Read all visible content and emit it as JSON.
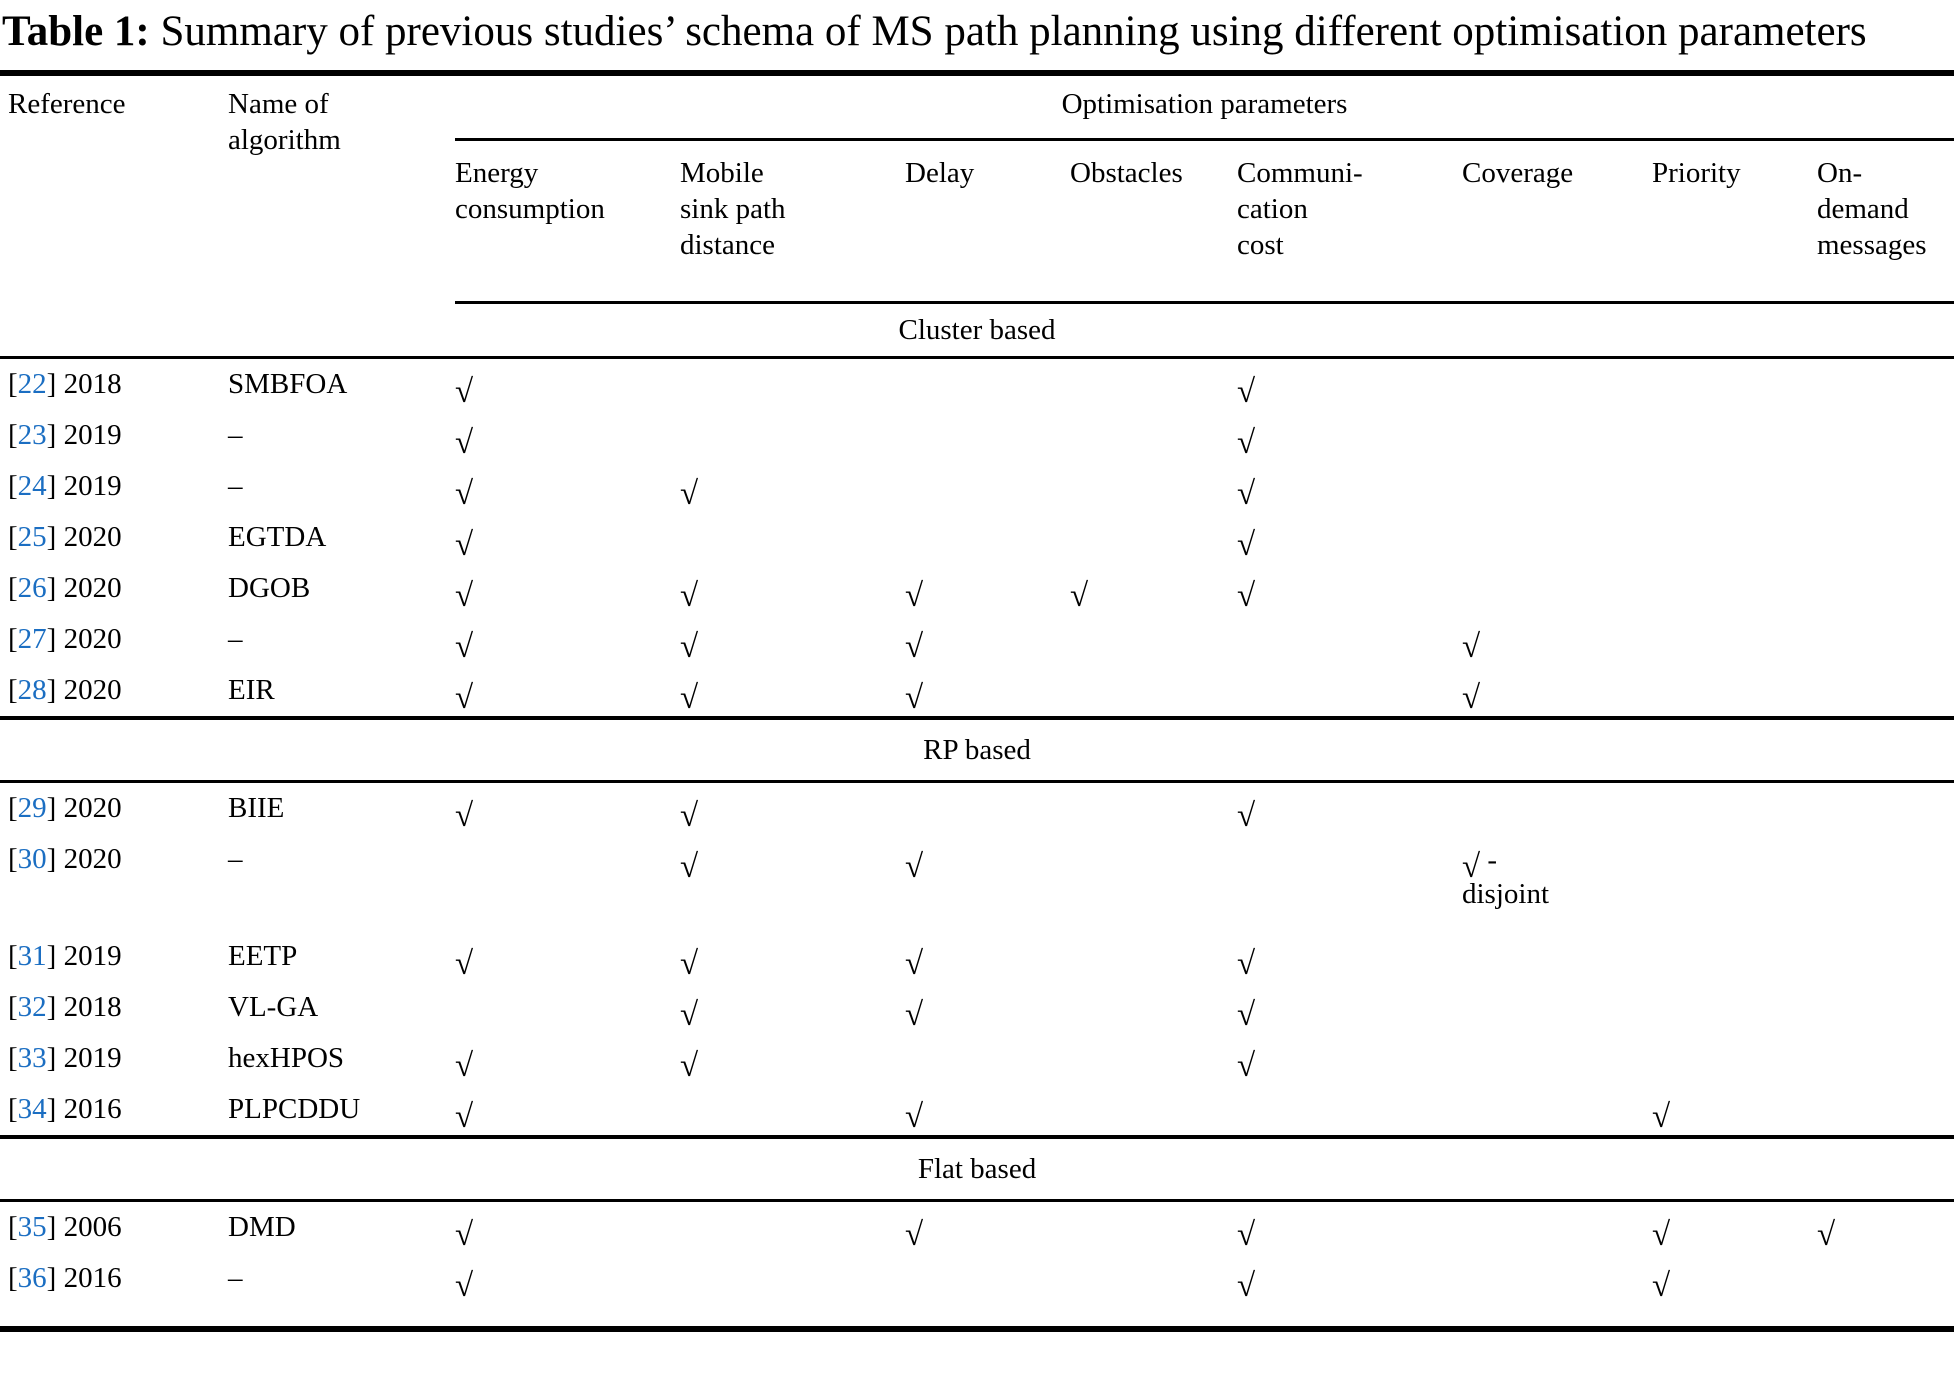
{
  "title": {
    "label": "Table 1:",
    "text": " Summary of previous studies’ schema of MS path planning using different optimisation parameters"
  },
  "table": {
    "col_reference": "Reference",
    "col_algorithm": "Name of|algorithm",
    "group_header": "Optimisation parameters",
    "param_headers": [
      "Energy|consumption",
      "Mobile|sink path|distance",
      "Delay",
      "Obstacles",
      "Communi-|cation|cost",
      "Coverage",
      "Priority",
      "On-|demand|messages"
    ],
    "check_glyph": "√",
    "link_color": "#1b6ec2",
    "sections": [
      {
        "label": "Cluster based",
        "rows": [
          {
            "ref_num": "22",
            "year": "2018",
            "algorithm": "SMBFOA",
            "cells": [
              "√",
              "",
              "",
              "",
              "√",
              "",
              "",
              ""
            ]
          },
          {
            "ref_num": "23",
            "year": "2019",
            "algorithm": "–",
            "cells": [
              "√",
              "",
              "",
              "",
              "√",
              "",
              "",
              ""
            ]
          },
          {
            "ref_num": "24",
            "year": "2019",
            "algorithm": "–",
            "cells": [
              "√",
              "√",
              "",
              "",
              "√",
              "",
              "",
              ""
            ]
          },
          {
            "ref_num": "25",
            "year": "2020",
            "algorithm": "EGTDA",
            "cells": [
              "√",
              "",
              "",
              "",
              "√",
              "",
              "",
              ""
            ]
          },
          {
            "ref_num": "26",
            "year": "2020",
            "algorithm": "DGOB",
            "cells": [
              "√",
              "√",
              "√",
              "√",
              "√",
              "",
              "",
              ""
            ]
          },
          {
            "ref_num": "27",
            "year": "2020",
            "algorithm": "–",
            "cells": [
              "√",
              "√",
              "√",
              "",
              "",
              "√",
              "",
              ""
            ]
          },
          {
            "ref_num": "28",
            "year": "2020",
            "algorithm": "EIR",
            "cells": [
              "√",
              "√",
              "√",
              "",
              "",
              "√",
              "",
              ""
            ]
          }
        ]
      },
      {
        "label": "RP based",
        "rows": [
          {
            "ref_num": "29",
            "year": "2020",
            "algorithm": "BIIE",
            "cells": [
              "√",
              "√",
              "",
              "",
              "√",
              "",
              "",
              ""
            ]
          },
          {
            "ref_num": "30",
            "year": "2020",
            "algorithm": "–",
            "cells": [
              "",
              "√",
              "√",
              "",
              "",
              "√ -|disjoint",
              "",
              ""
            ]
          },
          {
            "ref_num": "31",
            "year": "2019",
            "algorithm": "EETP",
            "cells": [
              "√",
              "√",
              "√",
              "",
              "√",
              "",
              "",
              ""
            ]
          },
          {
            "ref_num": "32",
            "year": "2018",
            "algorithm": "VL-GA",
            "cells": [
              "",
              "√",
              "√",
              "",
              "√",
              "",
              "",
              ""
            ]
          },
          {
            "ref_num": "33",
            "year": "2019",
            "algorithm": "hexHPOS",
            "cells": [
              "√",
              "√",
              "",
              "",
              "√",
              "",
              "",
              ""
            ]
          },
          {
            "ref_num": "34",
            "year": "2016",
            "algorithm": "PLPCDDU",
            "cells": [
              "√",
              "",
              "√",
              "",
              "",
              "",
              "√",
              ""
            ]
          }
        ]
      },
      {
        "label": "Flat based",
        "rows": [
          {
            "ref_num": "35",
            "year": "2006",
            "algorithm": "DMD",
            "cells": [
              "√",
              "",
              "√",
              "",
              "√",
              "",
              "√",
              "√"
            ]
          },
          {
            "ref_num": "36",
            "year": "2016",
            "algorithm": "–",
            "cells": [
              "√",
              "",
              "",
              "",
              "√",
              "",
              "√",
              ""
            ]
          }
        ]
      }
    ]
  }
}
